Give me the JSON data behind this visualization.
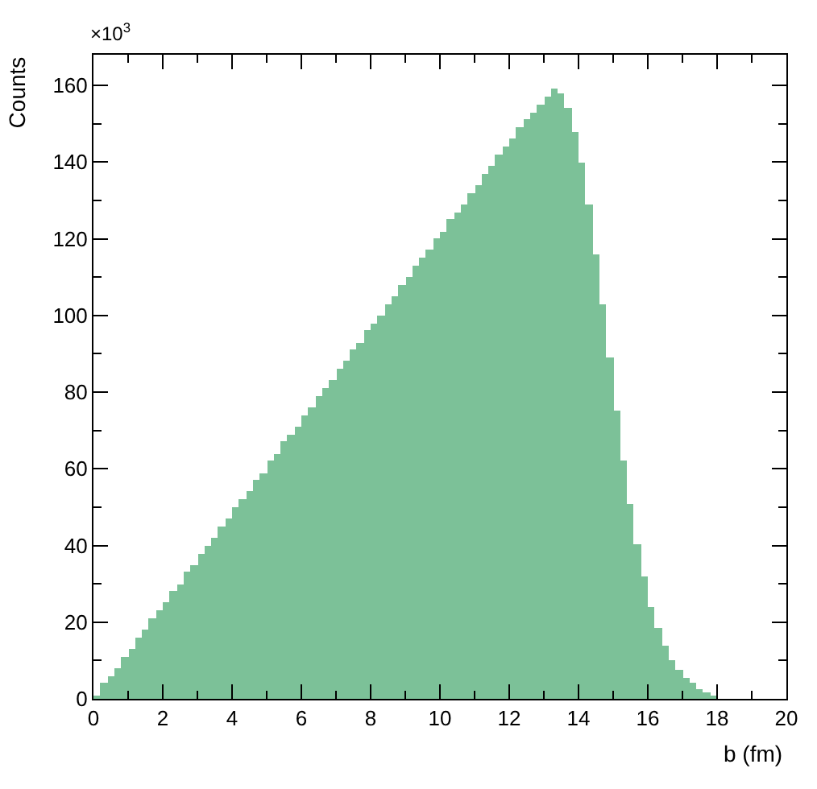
{
  "chart_data": {
    "type": "histogram",
    "xlabel": "b (fm)",
    "ylabel": "Counts",
    "annotations": [
      "×10$^{3}$"
    ],
    "bins": [
      0,
      0.2,
      0.4,
      0.6,
      0.8,
      1,
      1.2,
      1.4,
      1.6,
      1.8,
      2,
      2.2,
      2.4,
      2.6,
      2.8,
      3,
      3.2,
      3.4,
      3.6,
      3.8,
      4,
      4.2,
      4.4,
      4.6,
      4.8,
      5,
      5.2,
      5.4,
      5.6,
      5.8,
      6,
      6.2,
      6.4,
      6.6,
      6.8,
      7,
      7.2,
      7.4,
      7.6,
      7.8,
      8,
      8.2,
      8.4,
      8.6,
      8.8,
      9,
      9.2,
      9.4,
      9.6,
      9.8,
      10,
      10.2,
      10.4,
      10.6,
      10.8,
      11,
      11.2,
      11.4,
      11.6,
      11.8,
      12,
      12.2,
      12.4,
      12.6,
      12.8,
      13,
      13.2,
      13.4,
      13.6,
      13.8,
      14,
      14.2,
      14.4,
      14.6,
      14.8,
      15,
      15.2,
      15.4,
      15.6,
      15.8,
      16,
      16.2,
      16.4,
      16.6,
      16.8,
      17,
      17.2,
      17.4,
      17.6,
      17.8,
      18,
      18.2,
      18.4,
      18.6,
      18.8,
      19,
      19.2,
      19.4,
      19.6,
      19.8,
      20
    ],
    "values": [
      1,
      4,
      6,
      8,
      11,
      13,
      16,
      18,
      21,
      23,
      25,
      28,
      30,
      33,
      35,
      38,
      40,
      42,
      45,
      47,
      50,
      52,
      54,
      57,
      59,
      62,
      64,
      67,
      69,
      71,
      74,
      76,
      79,
      81,
      83,
      86,
      88,
      91,
      93,
      96,
      98,
      100,
      103,
      105,
      108,
      110,
      113,
      115,
      117,
      120,
      122,
      125,
      127,
      129,
      132,
      134,
      137,
      139,
      142,
      144,
      146,
      149,
      151,
      153,
      155,
      157,
      159,
      158,
      154,
      148,
      140,
      129,
      116,
      103,
      89,
      75,
      62,
      51,
      40.5,
      32,
      24,
      18.5,
      14,
      10,
      7.5,
      5.5,
      4,
      2.5,
      1.5,
      0.7,
      0,
      0,
      0,
      0,
      0,
      0,
      0,
      0,
      0,
      0
    ],
    "color": "#7cc198",
    "xlim": [
      0,
      20
    ],
    "xticks": [
      0,
      2,
      4,
      6,
      8,
      10,
      12,
      14,
      16,
      18,
      20
    ],
    "ylim": [
      0,
      168
    ],
    "yticks": [
      0,
      20,
      40,
      60,
      80,
      100,
      120,
      140,
      160
    ]
  }
}
